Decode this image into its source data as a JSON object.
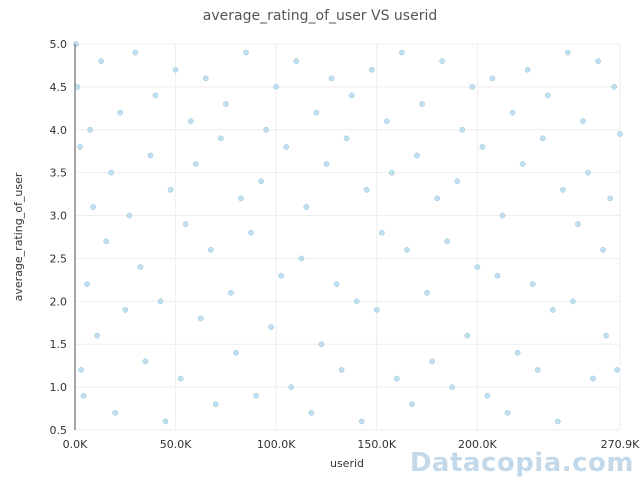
{
  "watermark": "Datacopia.com",
  "chart_data": {
    "type": "scatter",
    "title": "average_rating_of_user VS userid",
    "xlabel": "userid",
    "ylabel": "average_rating_of_user",
    "xlim": [
      0,
      270900
    ],
    "ylim": [
      0.5,
      5.0
    ],
    "x_ticks": [
      {
        "value": 0,
        "label": "0.0K"
      },
      {
        "value": 50000,
        "label": "50.0K"
      },
      {
        "value": 100000,
        "label": "100.0K"
      },
      {
        "value": 150000,
        "label": "150.0K"
      },
      {
        "value": 200000,
        "label": "200.0K"
      },
      {
        "value": 270900,
        "label": "270.9K"
      }
    ],
    "y_ticks": [
      {
        "value": 0.5,
        "label": "0.5"
      },
      {
        "value": 1.0,
        "label": "1.0"
      },
      {
        "value": 1.5,
        "label": "1.5"
      },
      {
        "value": 2.0,
        "label": "2.0"
      },
      {
        "value": 2.5,
        "label": "2.5"
      },
      {
        "value": 3.0,
        "label": "3.0"
      },
      {
        "value": 3.5,
        "label": "3.5"
      },
      {
        "value": 4.0,
        "label": "4.0"
      },
      {
        "value": 4.5,
        "label": "4.5"
      },
      {
        "value": 5.0,
        "label": "5.0"
      }
    ],
    "grid": true,
    "marker_color": "#b6d9ec",
    "series": [
      {
        "points": [
          [
            500,
            5.0
          ],
          [
            1200,
            4.5
          ],
          [
            2500,
            3.8
          ],
          [
            3100,
            1.2
          ],
          [
            4200,
            0.9
          ],
          [
            6000,
            2.2
          ],
          [
            7500,
            4.0
          ],
          [
            9000,
            3.1
          ],
          [
            11000,
            1.6
          ],
          [
            13000,
            4.8
          ],
          [
            15500,
            2.7
          ],
          [
            18000,
            3.5
          ],
          [
            20000,
            0.7
          ],
          [
            22500,
            4.2
          ],
          [
            25000,
            1.9
          ],
          [
            27000,
            3.0
          ],
          [
            30000,
            4.9
          ],
          [
            32500,
            2.4
          ],
          [
            35000,
            1.3
          ],
          [
            37500,
            3.7
          ],
          [
            40000,
            4.4
          ],
          [
            42500,
            2.0
          ],
          [
            45000,
            0.6
          ],
          [
            47500,
            3.3
          ],
          [
            50000,
            4.7
          ],
          [
            52500,
            1.1
          ],
          [
            55000,
            2.9
          ],
          [
            57500,
            4.1
          ],
          [
            60000,
            3.6
          ],
          [
            62500,
            1.8
          ],
          [
            65000,
            4.6
          ],
          [
            67500,
            2.6
          ],
          [
            70000,
            0.8
          ],
          [
            72500,
            3.9
          ],
          [
            75000,
            4.3
          ],
          [
            77500,
            2.1
          ],
          [
            80000,
            1.4
          ],
          [
            82500,
            3.2
          ],
          [
            85000,
            4.9
          ],
          [
            87500,
            2.8
          ],
          [
            90000,
            0.9
          ],
          [
            92500,
            3.4
          ],
          [
            95000,
            4.0
          ],
          [
            97500,
            1.7
          ],
          [
            100000,
            4.5
          ],
          [
            102500,
            2.3
          ],
          [
            105000,
            3.8
          ],
          [
            107500,
            1.0
          ],
          [
            110000,
            4.8
          ],
          [
            112500,
            2.5
          ],
          [
            115000,
            3.1
          ],
          [
            117500,
            0.7
          ],
          [
            120000,
            4.2
          ],
          [
            122500,
            1.5
          ],
          [
            125000,
            3.6
          ],
          [
            127500,
            4.6
          ],
          [
            130000,
            2.2
          ],
          [
            132500,
            1.2
          ],
          [
            135000,
            3.9
          ],
          [
            137500,
            4.4
          ],
          [
            140000,
            2.0
          ],
          [
            142500,
            0.6
          ],
          [
            145000,
            3.3
          ],
          [
            147500,
            4.7
          ],
          [
            150000,
            1.9
          ],
          [
            152500,
            2.8
          ],
          [
            155000,
            4.1
          ],
          [
            157500,
            3.5
          ],
          [
            160000,
            1.1
          ],
          [
            162500,
            4.9
          ],
          [
            165000,
            2.6
          ],
          [
            167500,
            0.8
          ],
          [
            170000,
            3.7
          ],
          [
            172500,
            4.3
          ],
          [
            175000,
            2.1
          ],
          [
            177500,
            1.3
          ],
          [
            180000,
            3.2
          ],
          [
            182500,
            4.8
          ],
          [
            185000,
            2.7
          ],
          [
            187500,
            1.0
          ],
          [
            190000,
            3.4
          ],
          [
            192500,
            4.0
          ],
          [
            195000,
            1.6
          ],
          [
            197500,
            4.5
          ],
          [
            200000,
            2.4
          ],
          [
            202500,
            3.8
          ],
          [
            205000,
            0.9
          ],
          [
            207500,
            4.6
          ],
          [
            210000,
            2.3
          ],
          [
            212500,
            3.0
          ],
          [
            215000,
            0.7
          ],
          [
            217500,
            4.2
          ],
          [
            220000,
            1.4
          ],
          [
            222500,
            3.6
          ],
          [
            225000,
            4.7
          ],
          [
            227500,
            2.2
          ],
          [
            230000,
            1.2
          ],
          [
            232500,
            3.9
          ],
          [
            235000,
            4.4
          ],
          [
            237500,
            1.9
          ],
          [
            240000,
            0.6
          ],
          [
            242500,
            3.3
          ],
          [
            245000,
            4.9
          ],
          [
            247500,
            2.0
          ],
          [
            250000,
            2.9
          ],
          [
            252500,
            4.1
          ],
          [
            255000,
            3.5
          ],
          [
            257500,
            1.1
          ],
          [
            260000,
            4.8
          ],
          [
            262500,
            2.6
          ],
          [
            264000,
            1.6
          ],
          [
            266000,
            3.2
          ],
          [
            268000,
            4.5
          ],
          [
            269500,
            1.2
          ],
          [
            270900,
            3.95
          ]
        ]
      }
    ]
  }
}
